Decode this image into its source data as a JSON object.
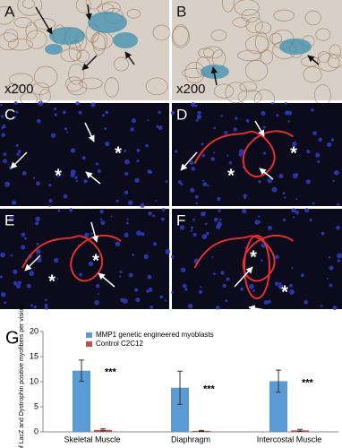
{
  "panels": [
    {
      "label": "A",
      "magnification": "x200"
    },
    {
      "label": "B",
      "magnification": "x200"
    },
    {
      "label": "C",
      "marks": [
        "*",
        "*"
      ]
    },
    {
      "label": "D",
      "marks": [
        "*",
        "*"
      ]
    },
    {
      "label": "E",
      "marks": [
        "*",
        "*"
      ]
    },
    {
      "label": "F",
      "marks": [
        "*",
        "*"
      ]
    }
  ],
  "chart_label": "G",
  "chart_data": {
    "type": "bar",
    "ylabel": "% of LacZ and Dystrophin positive myofibers per vision",
    "categories": [
      "Skeletal Muscle",
      "Diaphragm",
      "Intercostal Muscle"
    ],
    "series": [
      {
        "name": "MMP1 genetic engineered myoblasts",
        "color": "#5b9bd5",
        "values": [
          12.2,
          8.8,
          10.1
        ],
        "errors": [
          2.1,
          3.3,
          2.2
        ]
      },
      {
        "name": "Control C2C12",
        "color": "#c0504d",
        "values": [
          0.4,
          0.2,
          0.3
        ],
        "errors": [
          0.2,
          0.1,
          0.2
        ]
      }
    ],
    "annotations": [
      "***",
      "***",
      "***"
    ],
    "ylim": [
      0,
      20
    ],
    "yticks": [
      0,
      5,
      10,
      15,
      20
    ]
  }
}
